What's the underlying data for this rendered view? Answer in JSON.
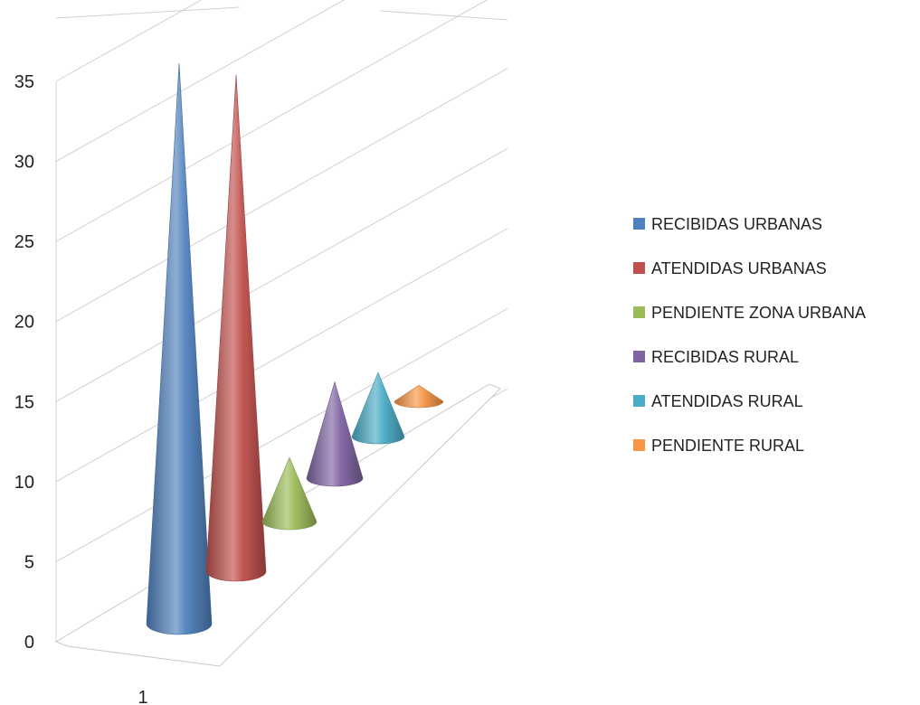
{
  "chart_data": {
    "type": "bar",
    "bar_shape": "3d-cone",
    "categories": [
      "1"
    ],
    "ylim": [
      0,
      35
    ],
    "y_ticks": [
      "0",
      "5",
      "10",
      "15",
      "20",
      "25",
      "30",
      "35"
    ],
    "gridlines": true,
    "legend_position": "right",
    "series": [
      {
        "name": "RECIBIDAS URBANAS",
        "values": [
          35
        ],
        "color": "#4F81BD"
      },
      {
        "name": "ATENDIDAS URBANAS",
        "values": [
          31
        ],
        "color": "#C0504D"
      },
      {
        "name": "PENDIENTE ZONA URBANA",
        "values": [
          4
        ],
        "color": "#9BBB59"
      },
      {
        "name": "RECIBIDAS RURAL",
        "values": [
          6
        ],
        "color": "#8064A2"
      },
      {
        "name": "ATENDIDAS RURAL",
        "values": [
          4
        ],
        "color": "#4BACC6"
      },
      {
        "name": "PENDIENTE RURAL",
        "values": [
          1
        ],
        "color": "#F79646"
      }
    ]
  }
}
